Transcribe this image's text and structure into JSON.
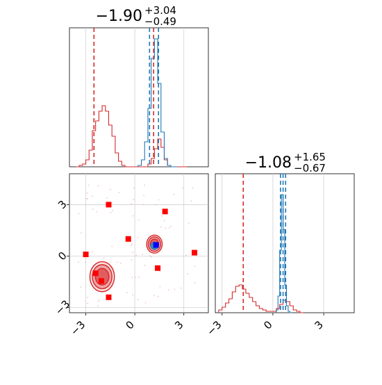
{
  "chart_data": [
    {
      "type": "histogram",
      "panel": "top-left",
      "title": {
        "main": "−1.90",
        "sup": "+3.04",
        "sub": "−0.49"
      },
      "xlim": [
        -4.0,
        4.5
      ],
      "ylim": [
        0,
        1.0
      ],
      "grid": true,
      "series": [
        {
          "color": "#d62728",
          "bin_edges": [
            -3.6,
            -3.4,
            -3.2,
            -3.0,
            -2.8,
            -2.6,
            -2.4,
            -2.2,
            -2.0,
            -1.8,
            -1.6,
            -1.4,
            -1.2,
            -1.0,
            -0.8,
            -0.6,
            -0.4,
            -0.2,
            0.0,
            0.2,
            0.4,
            0.6,
            0.8,
            1.0,
            1.2,
            1.4,
            1.6,
            1.8,
            2.0,
            2.2,
            2.4,
            2.6,
            2.8,
            3.0,
            3.2
          ],
          "counts": [
            0,
            0.01,
            0.02,
            0.05,
            0.12,
            0.26,
            0.33,
            0.4,
            0.44,
            0.4,
            0.3,
            0.22,
            0.1,
            0.04,
            0.01,
            0,
            0,
            0,
            0,
            0,
            0,
            0,
            0.02,
            0.06,
            0.13,
            0.2,
            0.14,
            0.05,
            0.01,
            0,
            0,
            0,
            0,
            0
          ],
          "quantile_lines": [
            -2.5,
            1.15
          ]
        },
        {
          "color": "#1f77b4",
          "bin_edges": [
            0.2,
            0.4,
            0.6,
            0.8,
            1.0,
            1.2,
            1.4,
            1.6,
            1.8,
            2.0,
            2.2,
            2.4,
            2.6
          ],
          "counts": [
            0.01,
            0.05,
            0.18,
            0.42,
            0.78,
            0.92,
            0.6,
            0.25,
            0.06,
            0.01,
            0,
            0
          ],
          "quantile_lines": [
            0.9,
            1.45
          ]
        }
      ]
    },
    {
      "type": "histogram",
      "panel": "bottom-right",
      "title": {
        "main": "−1.08",
        "sup": "+1.65",
        "sub": "−0.67"
      },
      "xlim": [
        -3.4,
        4.8
      ],
      "xticks": [
        -3,
        0,
        3
      ],
      "xtick_labels": [
        "−3",
        "0",
        "3"
      ],
      "ylim": [
        0,
        1.0
      ],
      "grid": true,
      "series": [
        {
          "color": "#d62728",
          "bin_edges": [
            -3.2,
            -3.0,
            -2.8,
            -2.6,
            -2.4,
            -2.2,
            -2.0,
            -1.8,
            -1.6,
            -1.4,
            -1.2,
            -1.0,
            -0.8,
            -0.6,
            -0.4,
            -0.2,
            0.0,
            0.2,
            0.4,
            0.6,
            0.8,
            1.0,
            1.2,
            1.4,
            1.6,
            1.8
          ],
          "counts": [
            0.02,
            0.04,
            0.07,
            0.1,
            0.15,
            0.19,
            0.2,
            0.17,
            0.14,
            0.11,
            0.08,
            0.05,
            0.03,
            0.02,
            0.01,
            0.01,
            0.01,
            0.03,
            0.06,
            0.09,
            0.08,
            0.05,
            0.02,
            0.01,
            0
          ],
          "quantile_lines": [
            -1.75
          ]
        },
        {
          "color": "#1f77b4",
          "bin_edges": [
            0.2,
            0.3,
            0.4,
            0.5,
            0.6,
            0.7,
            0.8,
            0.9,
            1.0,
            1.1
          ],
          "counts": [
            0.02,
            0.12,
            0.45,
            0.85,
            0.6,
            0.2,
            0.05,
            0.01,
            0
          ],
          "quantile_lines": [
            0.45,
            0.6,
            0.75
          ]
        }
      ]
    },
    {
      "type": "scatter",
      "panel": "bottom-left",
      "xlim": [
        -4.0,
        4.5
      ],
      "ylim": [
        -3.3,
        4.8
      ],
      "xticks": [
        -3,
        0,
        3
      ],
      "xtick_labels": [
        "−3",
        "0",
        "3"
      ],
      "yticks": [
        -3,
        0,
        3
      ],
      "ytick_labels": [
        "−3",
        "0",
        "3"
      ],
      "grid": true,
      "contours": [
        {
          "color": "#d62728",
          "cx": -2.0,
          "cy": -1.2,
          "rx": 1.5,
          "ry": 1.75,
          "levels": [
            1.0,
            0.8,
            0.55
          ]
        },
        {
          "color": "#d62728",
          "cx": 1.2,
          "cy": 0.7,
          "rx": 0.95,
          "ry": 1.05,
          "levels": [
            1.0,
            0.8,
            0.55
          ]
        },
        {
          "color": "#1f77b4",
          "cx": 1.2,
          "cy": 0.6,
          "rx": 0.45,
          "ry": 0.4,
          "levels": [
            1.0,
            0.65
          ]
        }
      ],
      "points": [
        {
          "x": -1.6,
          "y": 3.0,
          "color": "#ff0000"
        },
        {
          "x": -0.4,
          "y": 1.0,
          "color": "#ff0000"
        },
        {
          "x": 1.85,
          "y": 2.6,
          "color": "#ff0000"
        },
        {
          "x": 3.65,
          "y": 0.2,
          "color": "#ff0000"
        },
        {
          "x": 1.4,
          "y": -0.7,
          "color": "#ff0000"
        },
        {
          "x": -3.0,
          "y": 0.1,
          "color": "#ff0000"
        },
        {
          "x": -2.4,
          "y": -1.0,
          "color": "#ff0000"
        },
        {
          "x": -2.05,
          "y": -1.45,
          "color": "#ff0000"
        },
        {
          "x": -1.6,
          "y": -2.4,
          "color": "#ff0000"
        },
        {
          "x": 1.3,
          "y": 0.65,
          "color": "#0000ff"
        }
      ]
    }
  ]
}
